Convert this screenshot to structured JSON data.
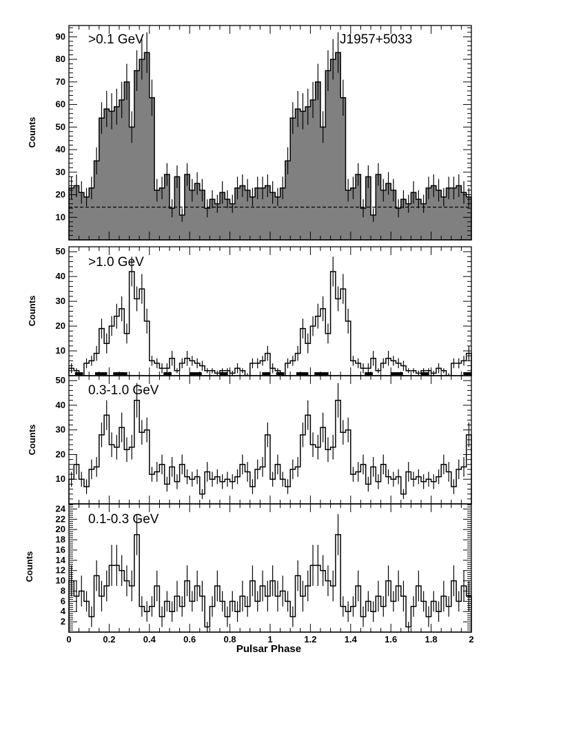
{
  "xlabel": "Pulsar Phase",
  "x_ticks": [
    "0",
    "0.2",
    "0.4",
    "0.6",
    "0.8",
    "1",
    "1.2",
    "1.4",
    "1.6",
    "1.8",
    "2"
  ],
  "xlim": [
    0,
    2
  ],
  "chart_data": [
    {
      "type": "bar",
      "title": ">0.1 GeV",
      "annotation": "J1957+5033",
      "ylabel": "Counts",
      "ylim": [
        0,
        95
      ],
      "yticks": [
        10,
        20,
        30,
        40,
        50,
        60,
        70,
        80,
        90
      ],
      "filled": true,
      "background_level": 14.5,
      "bin_width": 0.025,
      "values": [
        23,
        24,
        21,
        19,
        23,
        35,
        54,
        58,
        57,
        59,
        62,
        70,
        50,
        75,
        80,
        83,
        63,
        22,
        23,
        29,
        14,
        28,
        11,
        29,
        22,
        25,
        22,
        14,
        18,
        16,
        21,
        18,
        16,
        23,
        24,
        22,
        19,
        23
      ],
      "errors": [
        5,
        5,
        5,
        4,
        5,
        6,
        7,
        8,
        8,
        8,
        8,
        8,
        7,
        9,
        9,
        9,
        8,
        5,
        5,
        5,
        4,
        5,
        3,
        5,
        5,
        5,
        5,
        4,
        4,
        4,
        5,
        4,
        4,
        5,
        5,
        5,
        4,
        5
      ]
    },
    {
      "type": "bar",
      "title": ">1.0 GeV",
      "ylabel": "Counts",
      "ylim": [
        0,
        52
      ],
      "yticks": [
        10,
        20,
        30,
        40,
        50
      ],
      "filled": false,
      "bin_width": 0.025,
      "values": [
        3,
        2,
        0,
        5,
        6,
        9,
        19,
        13,
        20,
        24,
        27,
        17,
        42,
        31,
        35,
        22,
        6,
        5,
        3,
        3,
        7,
        2,
        5,
        7,
        6,
        5,
        4,
        2,
        2,
        1,
        2,
        2,
        1,
        3,
        2,
        0,
        5,
        5,
        6,
        9
      ],
      "errors": [
        2,
        1,
        1,
        2,
        2,
        3,
        4,
        4,
        4,
        5,
        5,
        4,
        6,
        5,
        6,
        5,
        2,
        2,
        2,
        2,
        3,
        1,
        2,
        3,
        2,
        2,
        2,
        1,
        1,
        1,
        1,
        1,
        1,
        2,
        1,
        1,
        2,
        2,
        2,
        3
      ],
      "rug_ranges": [
        [
          0.03,
          0.07
        ],
        [
          0.13,
          0.19
        ],
        [
          0.22,
          0.29
        ],
        [
          0.47,
          0.51
        ],
        [
          0.6,
          0.66
        ],
        [
          0.75,
          0.79
        ],
        [
          0.96,
          1.0
        ]
      ]
    },
    {
      "type": "bar",
      "title": "0.3-1.0 GeV",
      "ylabel": "Counts",
      "ylim": [
        0,
        52
      ],
      "yticks": [
        10,
        20,
        30,
        40,
        50
      ],
      "filled": false,
      "bin_width": 0.025,
      "values": [
        10,
        16,
        10,
        7,
        14,
        15,
        28,
        36,
        24,
        23,
        31,
        22,
        23,
        42,
        29,
        30,
        12,
        13,
        16,
        8,
        15,
        9,
        16,
        11,
        10,
        11,
        4,
        13,
        10,
        11,
        9,
        10,
        9,
        11,
        16,
        13,
        7,
        14,
        15,
        28
      ],
      "errors": [
        3,
        4,
        3,
        3,
        4,
        4,
        5,
        6,
        5,
        5,
        6,
        5,
        5,
        7,
        5,
        5,
        3,
        4,
        4,
        3,
        4,
        3,
        4,
        3,
        3,
        3,
        2,
        4,
        3,
        3,
        3,
        3,
        3,
        3,
        4,
        4,
        3,
        4,
        4,
        5
      ]
    },
    {
      "type": "bar",
      "title": "0.1-0.3 GeV",
      "ylabel": "Counts",
      "ylim": [
        0,
        25
      ],
      "yticks": [
        2,
        4,
        6,
        8,
        10,
        12,
        14,
        16,
        18,
        20,
        22,
        24
      ],
      "filled": false,
      "bin_width": 0.025,
      "values": [
        10,
        7,
        8,
        6,
        3,
        11,
        7,
        9,
        13,
        13,
        12,
        10,
        9,
        19,
        5,
        4,
        5,
        9,
        3,
        6,
        4,
        7,
        5,
        10,
        6,
        9,
        7,
        1,
        5,
        9,
        6,
        3,
        6,
        4,
        7,
        5,
        10,
        6,
        9,
        7
      ],
      "errors": [
        3,
        3,
        3,
        2,
        2,
        3,
        3,
        3,
        4,
        4,
        3,
        3,
        3,
        4,
        2,
        2,
        2,
        3,
        2,
        2,
        2,
        3,
        2,
        3,
        2,
        3,
        3,
        1,
        2,
        3,
        2,
        2,
        2,
        2,
        3,
        2,
        3,
        2,
        3,
        3
      ]
    }
  ]
}
